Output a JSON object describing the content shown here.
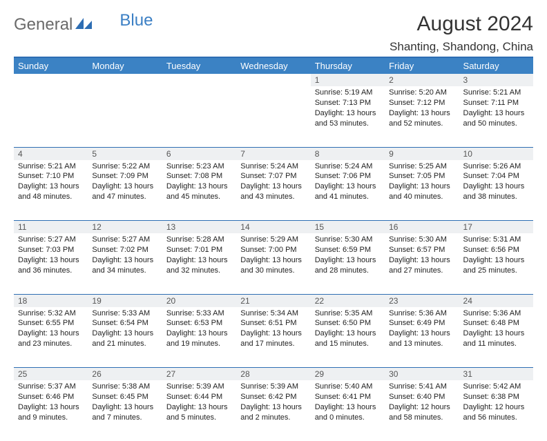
{
  "brand": {
    "part1": "General",
    "part2": "Blue"
  },
  "title": "August 2024",
  "location": "Shanting, Shandong, China",
  "colors": {
    "header_bg": "#3b82c4",
    "header_text": "#ffffff",
    "rule": "#2d6db3",
    "daynum_bg": "#eef0f2",
    "text": "#222222",
    "logo_gray": "#6a6a6a",
    "logo_blue": "#3b7fc4"
  },
  "weekdays": [
    "Sunday",
    "Monday",
    "Tuesday",
    "Wednesday",
    "Thursday",
    "Friday",
    "Saturday"
  ],
  "weeks": [
    [
      null,
      null,
      null,
      null,
      {
        "n": "1",
        "sr": "Sunrise: 5:19 AM",
        "ss": "Sunset: 7:13 PM",
        "d1": "Daylight: 13 hours",
        "d2": "and 53 minutes."
      },
      {
        "n": "2",
        "sr": "Sunrise: 5:20 AM",
        "ss": "Sunset: 7:12 PM",
        "d1": "Daylight: 13 hours",
        "d2": "and 52 minutes."
      },
      {
        "n": "3",
        "sr": "Sunrise: 5:21 AM",
        "ss": "Sunset: 7:11 PM",
        "d1": "Daylight: 13 hours",
        "d2": "and 50 minutes."
      }
    ],
    [
      {
        "n": "4",
        "sr": "Sunrise: 5:21 AM",
        "ss": "Sunset: 7:10 PM",
        "d1": "Daylight: 13 hours",
        "d2": "and 48 minutes."
      },
      {
        "n": "5",
        "sr": "Sunrise: 5:22 AM",
        "ss": "Sunset: 7:09 PM",
        "d1": "Daylight: 13 hours",
        "d2": "and 47 minutes."
      },
      {
        "n": "6",
        "sr": "Sunrise: 5:23 AM",
        "ss": "Sunset: 7:08 PM",
        "d1": "Daylight: 13 hours",
        "d2": "and 45 minutes."
      },
      {
        "n": "7",
        "sr": "Sunrise: 5:24 AM",
        "ss": "Sunset: 7:07 PM",
        "d1": "Daylight: 13 hours",
        "d2": "and 43 minutes."
      },
      {
        "n": "8",
        "sr": "Sunrise: 5:24 AM",
        "ss": "Sunset: 7:06 PM",
        "d1": "Daylight: 13 hours",
        "d2": "and 41 minutes."
      },
      {
        "n": "9",
        "sr": "Sunrise: 5:25 AM",
        "ss": "Sunset: 7:05 PM",
        "d1": "Daylight: 13 hours",
        "d2": "and 40 minutes."
      },
      {
        "n": "10",
        "sr": "Sunrise: 5:26 AM",
        "ss": "Sunset: 7:04 PM",
        "d1": "Daylight: 13 hours",
        "d2": "and 38 minutes."
      }
    ],
    [
      {
        "n": "11",
        "sr": "Sunrise: 5:27 AM",
        "ss": "Sunset: 7:03 PM",
        "d1": "Daylight: 13 hours",
        "d2": "and 36 minutes."
      },
      {
        "n": "12",
        "sr": "Sunrise: 5:27 AM",
        "ss": "Sunset: 7:02 PM",
        "d1": "Daylight: 13 hours",
        "d2": "and 34 minutes."
      },
      {
        "n": "13",
        "sr": "Sunrise: 5:28 AM",
        "ss": "Sunset: 7:01 PM",
        "d1": "Daylight: 13 hours",
        "d2": "and 32 minutes."
      },
      {
        "n": "14",
        "sr": "Sunrise: 5:29 AM",
        "ss": "Sunset: 7:00 PM",
        "d1": "Daylight: 13 hours",
        "d2": "and 30 minutes."
      },
      {
        "n": "15",
        "sr": "Sunrise: 5:30 AM",
        "ss": "Sunset: 6:59 PM",
        "d1": "Daylight: 13 hours",
        "d2": "and 28 minutes."
      },
      {
        "n": "16",
        "sr": "Sunrise: 5:30 AM",
        "ss": "Sunset: 6:57 PM",
        "d1": "Daylight: 13 hours",
        "d2": "and 27 minutes."
      },
      {
        "n": "17",
        "sr": "Sunrise: 5:31 AM",
        "ss": "Sunset: 6:56 PM",
        "d1": "Daylight: 13 hours",
        "d2": "and 25 minutes."
      }
    ],
    [
      {
        "n": "18",
        "sr": "Sunrise: 5:32 AM",
        "ss": "Sunset: 6:55 PM",
        "d1": "Daylight: 13 hours",
        "d2": "and 23 minutes."
      },
      {
        "n": "19",
        "sr": "Sunrise: 5:33 AM",
        "ss": "Sunset: 6:54 PM",
        "d1": "Daylight: 13 hours",
        "d2": "and 21 minutes."
      },
      {
        "n": "20",
        "sr": "Sunrise: 5:33 AM",
        "ss": "Sunset: 6:53 PM",
        "d1": "Daylight: 13 hours",
        "d2": "and 19 minutes."
      },
      {
        "n": "21",
        "sr": "Sunrise: 5:34 AM",
        "ss": "Sunset: 6:51 PM",
        "d1": "Daylight: 13 hours",
        "d2": "and 17 minutes."
      },
      {
        "n": "22",
        "sr": "Sunrise: 5:35 AM",
        "ss": "Sunset: 6:50 PM",
        "d1": "Daylight: 13 hours",
        "d2": "and 15 minutes."
      },
      {
        "n": "23",
        "sr": "Sunrise: 5:36 AM",
        "ss": "Sunset: 6:49 PM",
        "d1": "Daylight: 13 hours",
        "d2": "and 13 minutes."
      },
      {
        "n": "24",
        "sr": "Sunrise: 5:36 AM",
        "ss": "Sunset: 6:48 PM",
        "d1": "Daylight: 13 hours",
        "d2": "and 11 minutes."
      }
    ],
    [
      {
        "n": "25",
        "sr": "Sunrise: 5:37 AM",
        "ss": "Sunset: 6:46 PM",
        "d1": "Daylight: 13 hours",
        "d2": "and 9 minutes."
      },
      {
        "n": "26",
        "sr": "Sunrise: 5:38 AM",
        "ss": "Sunset: 6:45 PM",
        "d1": "Daylight: 13 hours",
        "d2": "and 7 minutes."
      },
      {
        "n": "27",
        "sr": "Sunrise: 5:39 AM",
        "ss": "Sunset: 6:44 PM",
        "d1": "Daylight: 13 hours",
        "d2": "and 5 minutes."
      },
      {
        "n": "28",
        "sr": "Sunrise: 5:39 AM",
        "ss": "Sunset: 6:42 PM",
        "d1": "Daylight: 13 hours",
        "d2": "and 2 minutes."
      },
      {
        "n": "29",
        "sr": "Sunrise: 5:40 AM",
        "ss": "Sunset: 6:41 PM",
        "d1": "Daylight: 13 hours",
        "d2": "and 0 minutes."
      },
      {
        "n": "30",
        "sr": "Sunrise: 5:41 AM",
        "ss": "Sunset: 6:40 PM",
        "d1": "Daylight: 12 hours",
        "d2": "and 58 minutes."
      },
      {
        "n": "31",
        "sr": "Sunrise: 5:42 AM",
        "ss": "Sunset: 6:38 PM",
        "d1": "Daylight: 12 hours",
        "d2": "and 56 minutes."
      }
    ]
  ]
}
